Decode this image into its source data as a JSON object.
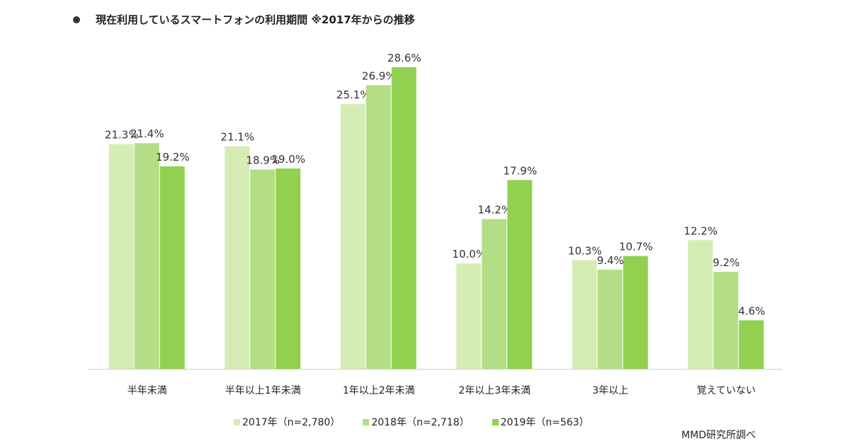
{
  "chart_data": {
    "type": "bar",
    "title": "現在利用しているスマートフォンの利用期間 ※2017年からの推移",
    "categories": [
      "半年未満",
      "半年以上1年未満",
      "1年以上2年未満",
      "2年以上3年未満",
      "3年以上",
      "覚えていない"
    ],
    "series": [
      {
        "name": "2017年（n=2,780）",
        "color": "#d5edb5",
        "values": [
          21.3,
          21.1,
          25.1,
          10.0,
          10.3,
          12.2
        ]
      },
      {
        "name": "2018年（n=2,718）",
        "color": "#b4de86",
        "values": [
          21.4,
          18.9,
          26.9,
          14.2,
          9.4,
          9.2
        ]
      },
      {
        "name": "2019年（n=563）",
        "color": "#92d050",
        "values": [
          19.2,
          19.0,
          28.6,
          17.9,
          10.7,
          4.6
        ]
      }
    ],
    "ylim": [
      0,
      30
    ],
    "value_suffix": "%",
    "grid": false,
    "legend_position": "bottom",
    "source": "MMD研究所調べ"
  }
}
